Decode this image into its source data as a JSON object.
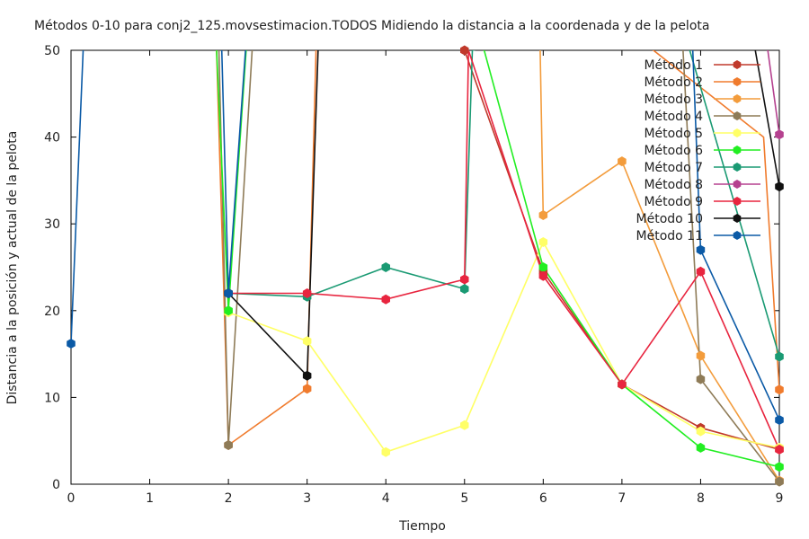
{
  "chart_data": {
    "type": "line",
    "title": "Métodos 0-10 para conj2_125.movsestimacion.TODOS Midiendo la distancia a la coordenada y de la pelota",
    "xlabel": "Tiempo",
    "ylabel": "Distancia a la posición y actual de la pelota",
    "xlim": [
      0,
      9
    ],
    "ylim": [
      0,
      50
    ],
    "xticks": [
      "0",
      "1",
      "2",
      "3",
      "4",
      "5",
      "6",
      "7",
      "8",
      "9"
    ],
    "yticks": [
      "0",
      "10",
      "20",
      "30",
      "40",
      "50"
    ],
    "legend_position": "top-right",
    "grid": false,
    "series": [
      {
        "name": "Método 1",
        "color": "#c0392b",
        "points": [
          [
            5,
            50
          ],
          [
            6,
            24.5
          ],
          [
            7,
            11.5
          ],
          [
            8,
            6.5
          ],
          [
            9,
            4.0
          ]
        ]
      },
      {
        "name": "Método 2",
        "color": "#f07b2d",
        "points": [
          [
            1.75,
            80
          ],
          [
            2,
            4.5
          ],
          [
            3,
            11.0
          ],
          [
            3.2,
            80
          ],
          [
            8.8,
            40
          ],
          [
            9,
            10.9
          ]
        ]
      },
      {
        "name": "Método 3",
        "color": "#f39c3c",
        "points": [
          [
            5.9,
            80
          ],
          [
            6,
            31.0
          ],
          [
            7,
            37.2
          ],
          [
            8,
            14.8
          ],
          [
            9,
            0.4
          ]
        ]
      },
      {
        "name": "Método 4",
        "color": "#8e7b57",
        "points": [
          [
            1.8,
            80
          ],
          [
            2,
            4.5
          ],
          [
            2.5,
            80
          ],
          [
            7.6,
            80
          ],
          [
            8,
            12.1
          ],
          [
            9,
            0.3
          ]
        ]
      },
      {
        "name": "Método 5",
        "color": "#ffff66",
        "points": [
          [
            2,
            19.8
          ],
          [
            3,
            16.5
          ],
          [
            4,
            3.7
          ],
          [
            5,
            6.8
          ],
          [
            6,
            27.9
          ],
          [
            7,
            11.5
          ],
          [
            8,
            6.1
          ],
          [
            9,
            4.2
          ]
        ]
      },
      {
        "name": "Método 6",
        "color": "#22ee22",
        "points": [
          [
            1.8,
            60
          ],
          [
            2,
            20.0
          ],
          [
            2.3,
            60
          ],
          [
            5.1,
            55
          ],
          [
            6,
            25.0
          ],
          [
            7,
            11.5
          ],
          [
            8,
            4.2
          ],
          [
            9,
            2.0
          ]
        ]
      },
      {
        "name": "Método 7",
        "color": "#1a9a73",
        "points": [
          [
            2,
            22.0
          ],
          [
            3,
            21.6
          ],
          [
            4,
            25.0
          ],
          [
            5,
            22.5
          ],
          [
            5.1,
            50
          ],
          [
            7.7,
            55
          ],
          [
            9,
            14.7
          ]
        ]
      },
      {
        "name": "Método 8",
        "color": "#b5418f",
        "points": [
          [
            8.4,
            80
          ],
          [
            9,
            40.3
          ]
        ]
      },
      {
        "name": "Método 9",
        "color": "#e8253f",
        "points": [
          [
            2,
            22.0
          ],
          [
            3,
            22.0
          ],
          [
            4,
            21.3
          ],
          [
            5,
            23.6
          ],
          [
            5.05,
            50
          ],
          [
            6,
            24.0
          ],
          [
            7,
            11.5
          ],
          [
            8,
            24.5
          ],
          [
            9,
            4.0
          ]
        ]
      },
      {
        "name": "Método 10",
        "color": "#111111",
        "points": [
          [
            2,
            22.0
          ],
          [
            3,
            12.5
          ],
          [
            3.25,
            80
          ],
          [
            8.5,
            60
          ],
          [
            9,
            34.3
          ]
        ]
      },
      {
        "name": "Método 11",
        "color": "#0b5aa6",
        "points": [
          [
            0,
            16.2
          ],
          [
            0.2,
            60
          ],
          [
            1.9,
            55
          ],
          [
            2,
            22.0
          ],
          [
            2.45,
            80
          ],
          [
            7.9,
            50
          ],
          [
            8,
            27.0
          ],
          [
            9,
            7.4
          ]
        ]
      }
    ]
  }
}
